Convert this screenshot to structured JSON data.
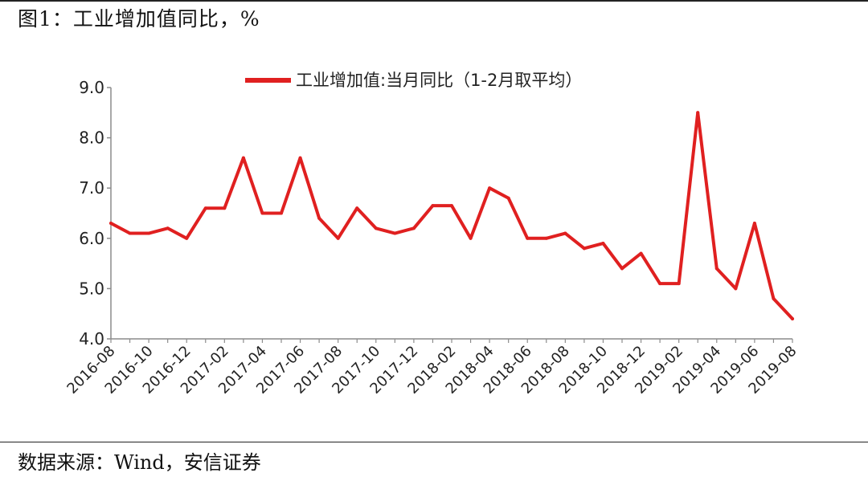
{
  "header": {
    "title": "图1：工业增加值同比，%"
  },
  "footer": {
    "source": "数据来源：Wind，安信证券"
  },
  "colors": {
    "series": "#e02020",
    "axis": "#8c8c8c",
    "text": "#222222"
  },
  "chart_data": {
    "type": "line",
    "title": "",
    "xlabel": "",
    "ylabel": "",
    "ylim": [
      4.0,
      9.0
    ],
    "yticks": [
      "4.0",
      "5.0",
      "6.0",
      "7.0",
      "8.0",
      "9.0"
    ],
    "grid": false,
    "legend_position": "top",
    "x_tick_labels": [
      "2016-08",
      "2016-10",
      "2016-12",
      "2017-02",
      "2017-04",
      "2017-06",
      "2017-08",
      "2017-10",
      "2017-12",
      "2018-02",
      "2018-04",
      "2018-06",
      "2018-08",
      "2018-10",
      "2018-12",
      "2019-02",
      "2019-04",
      "2019-06",
      "2019-08"
    ],
    "x": [
      "2016-08",
      "2016-09",
      "2016-10",
      "2016-11",
      "2016-12",
      "2017-01",
      "2017-02",
      "2017-03",
      "2017-04",
      "2017-05",
      "2017-06",
      "2017-07",
      "2017-08",
      "2017-09",
      "2017-10",
      "2017-11",
      "2017-12",
      "2018-01",
      "2018-02",
      "2018-03",
      "2018-04",
      "2018-05",
      "2018-06",
      "2018-07",
      "2018-08",
      "2018-09",
      "2018-10",
      "2018-11",
      "2018-12",
      "2019-01",
      "2019-02",
      "2019-03",
      "2019-04",
      "2019-05",
      "2019-06",
      "2019-07",
      "2019-08"
    ],
    "series": [
      {
        "name": "工业增加值:当月同比（1-2月取平均）",
        "color": "#e02020",
        "values": [
          6.3,
          6.1,
          6.1,
          6.2,
          6.0,
          6.6,
          6.6,
          7.6,
          6.5,
          6.5,
          7.6,
          6.4,
          6.0,
          6.6,
          6.2,
          6.1,
          6.2,
          6.65,
          6.65,
          6.0,
          7.0,
          6.8,
          6.0,
          6.0,
          6.1,
          5.8,
          5.9,
          5.4,
          5.7,
          5.1,
          5.1,
          8.5,
          5.4,
          5.0,
          6.3,
          4.8,
          4.4
        ]
      }
    ]
  }
}
